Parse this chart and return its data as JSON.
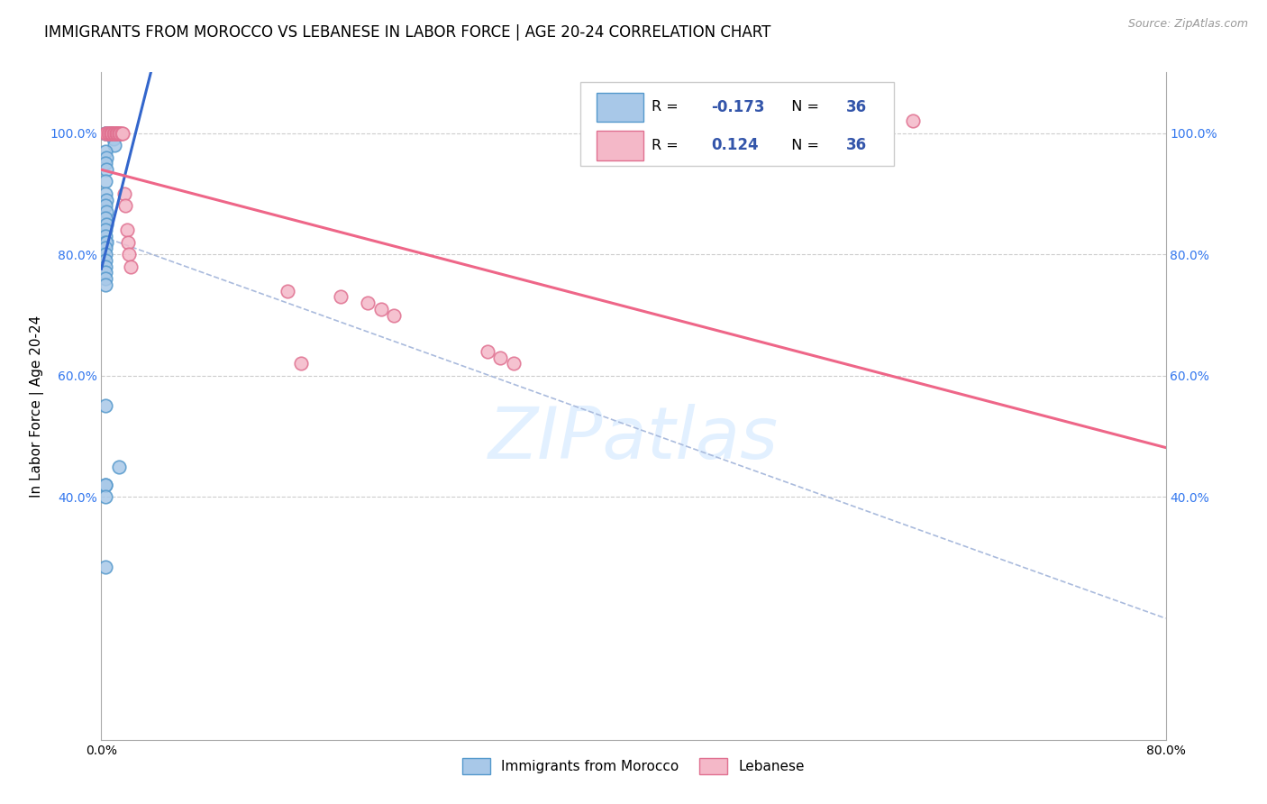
{
  "title": "IMMIGRANTS FROM MOROCCO VS LEBANESE IN LABOR FORCE | AGE 20-24 CORRELATION CHART",
  "source": "Source: ZipAtlas.com",
  "ylabel": "In Labor Force | Age 20-24",
  "xlim": [
    0.0,
    0.8
  ],
  "ylim": [
    0.0,
    1.1
  ],
  "morocco_color": "#a8c8e8",
  "lebanese_color": "#f4b8c8",
  "morocco_edge": "#5599cc",
  "lebanese_edge": "#e07090",
  "regression_morocco_color": "#3366cc",
  "regression_lebanese_color": "#ee6688",
  "dashed_line_color": "#aabbdd",
  "grid_color": "#cccccc",
  "legend_color": "#3355aa",
  "watermark_color": "#ddeeff",
  "background_color": "#ffffff",
  "title_fontsize": 12,
  "axis_label_fontsize": 11,
  "tick_fontsize": 10,
  "morocco_x": [
    0.003,
    0.003,
    0.005,
    0.006,
    0.007,
    0.008,
    0.009,
    0.01,
    0.003,
    0.004,
    0.003,
    0.004,
    0.003,
    0.003,
    0.004,
    0.003,
    0.004,
    0.003,
    0.004,
    0.003,
    0.003,
    0.003,
    0.004,
    0.003,
    0.003,
    0.003,
    0.003,
    0.003,
    0.003,
    0.003,
    0.003,
    0.003,
    0.003,
    0.003,
    0.013,
    0.003
  ],
  "morocco_y": [
    1.0,
    1.0,
    1.0,
    1.0,
    1.0,
    1.0,
    0.99,
    0.98,
    0.97,
    0.96,
    0.95,
    0.94,
    0.92,
    0.9,
    0.89,
    0.88,
    0.87,
    0.86,
    0.85,
    0.84,
    0.83,
    0.82,
    0.82,
    0.81,
    0.8,
    0.79,
    0.78,
    0.77,
    0.76,
    0.75,
    0.55,
    0.42,
    0.42,
    0.4,
    0.45,
    0.285
  ],
  "lebanese_x": [
    0.003,
    0.004,
    0.005,
    0.006,
    0.007,
    0.007,
    0.008,
    0.008,
    0.009,
    0.01,
    0.01,
    0.011,
    0.011,
    0.012,
    0.012,
    0.013,
    0.013,
    0.014,
    0.015,
    0.016,
    0.017,
    0.018,
    0.019,
    0.02,
    0.021,
    0.022,
    0.14,
    0.18,
    0.2,
    0.21,
    0.22,
    0.29,
    0.3,
    0.31,
    0.61,
    0.15
  ],
  "lebanese_y": [
    1.0,
    1.0,
    1.0,
    1.0,
    1.0,
    1.0,
    1.0,
    1.0,
    1.0,
    1.0,
    1.0,
    1.0,
    1.0,
    1.0,
    1.0,
    1.0,
    1.0,
    1.0,
    1.0,
    1.0,
    0.9,
    0.88,
    0.84,
    0.82,
    0.8,
    0.78,
    0.74,
    0.73,
    0.72,
    0.71,
    0.7,
    0.64,
    0.63,
    0.62,
    1.02,
    0.62
  ],
  "watermark": "ZIPatlas"
}
